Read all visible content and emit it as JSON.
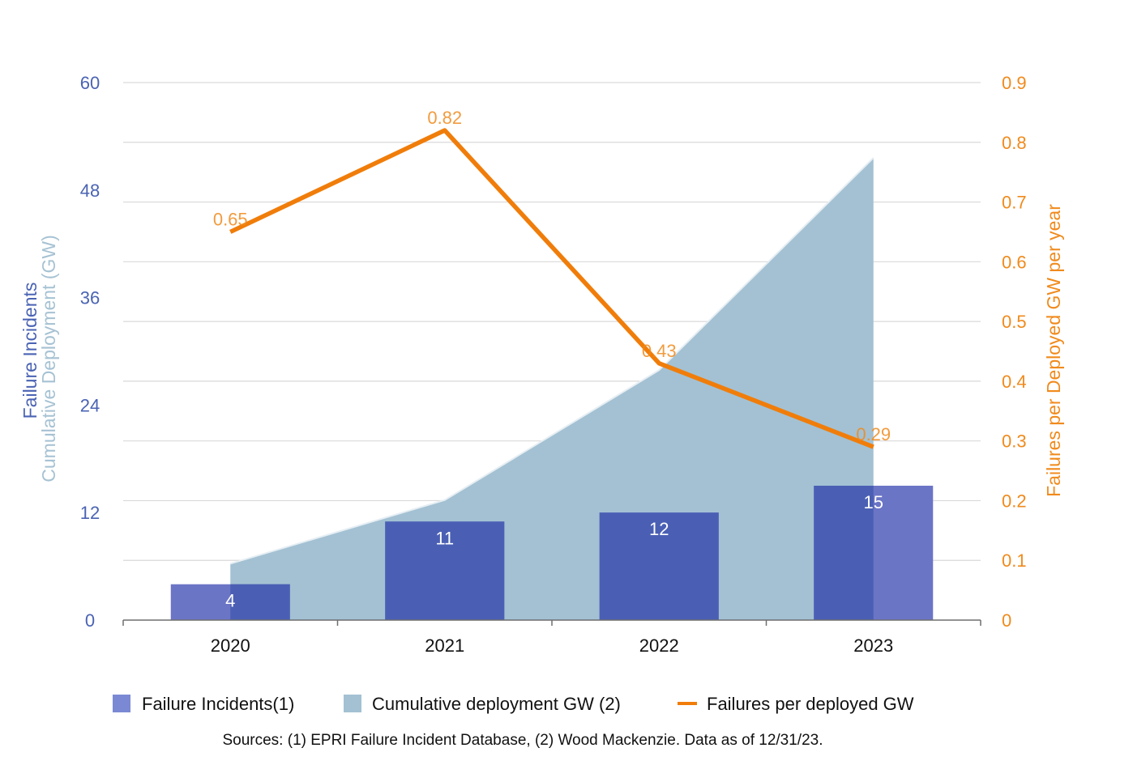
{
  "chart_data": {
    "type": "bar",
    "title": "",
    "categories": [
      "2020",
      "2021",
      "2022",
      "2023"
    ],
    "ylabel_left": [
      "Failure Incidents",
      "Cumulative Deployment (GW)"
    ],
    "ylabel_right": "Failures per Deployed GW per year",
    "ylim_left": [
      0,
      60
    ],
    "ylim_right": [
      0,
      0.9
    ],
    "yticks_left": [
      "0",
      "12",
      "24",
      "36",
      "48",
      "60"
    ],
    "yticks_right": [
      "0",
      "0.1",
      "0.2",
      "0.3",
      "0.4",
      "0.5",
      "0.6",
      "0.7",
      "0.8",
      "0.9"
    ],
    "grid": true,
    "legend_position": "bottom",
    "series": [
      {
        "name": "Failure Incidents(1)",
        "type": "bar",
        "axis": "left",
        "values": [
          4,
          11,
          12,
          15
        ],
        "labels": [
          "4",
          "11",
          "12",
          "15"
        ],
        "color": "#4a63b8"
      },
      {
        "name": "Cumulative deployment GW (2)",
        "type": "area",
        "axis": "left",
        "values": [
          6.3,
          13.4,
          27.9,
          51.6
        ],
        "color": "#a3c1d3"
      },
      {
        "name": "Failures per deployed GW",
        "type": "line",
        "axis": "right",
        "values": [
          0.65,
          0.82,
          0.43,
          0.29
        ],
        "labels": [
          "0.65",
          "0.82",
          "0.43",
          "0.29"
        ],
        "color": "#f07d0a"
      }
    ],
    "source": "Sources: (1) EPRI Failure Incident Database, (2) Wood Mackenzie. Data as of 12/31/23."
  }
}
